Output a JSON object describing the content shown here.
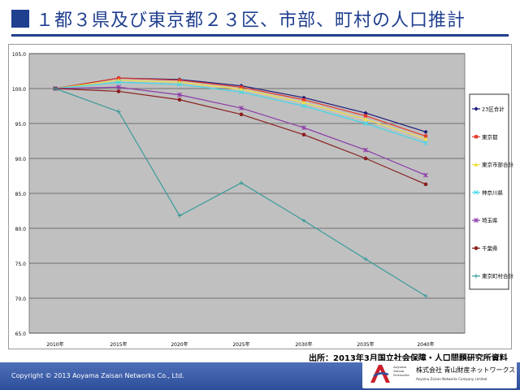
{
  "header": {
    "title": "１都３県及び東京都２３区、市部、町村の人口推計"
  },
  "source": "出所：2013年3月国立社会保障・人口問題研究所資料",
  "footer": {
    "copyright": "Copyright © 2013 Aoyama Zaisan Networks Co., Ltd.",
    "company_name": "株式会社 青山財産ネットワークス",
    "company_en": "Aoyama Zaisan Networks Company Limited",
    "logo_caption": [
      "Aoyama",
      "Zaisan",
      "Networks"
    ]
  },
  "chart_data": {
    "type": "line",
    "title": "",
    "xlabel": "",
    "ylabel": "",
    "categories": [
      "2010年",
      "2015年",
      "2020年",
      "2025年",
      "2030年",
      "2035年",
      "2040年"
    ],
    "ylim": [
      65.0,
      105.0
    ],
    "yticks": [
      "65.0",
      "70.0",
      "75.0",
      "80.0",
      "85.0",
      "90.0",
      "95.0",
      "100.0",
      "105.0"
    ],
    "grid": true,
    "legend_position": "right",
    "series": [
      {
        "name": "23区合計",
        "color": "#1a1a7a",
        "marker": "diamond",
        "values": [
          100.0,
          101.5,
          101.3,
          100.4,
          98.7,
          96.5,
          93.8
        ]
      },
      {
        "name": "東京都",
        "color": "#e23a2a",
        "marker": "square",
        "values": [
          100.0,
          101.5,
          101.2,
          100.2,
          98.4,
          96.1,
          93.2
        ]
      },
      {
        "name": "東京市部合計",
        "color": "#f0e040",
        "marker": "triangle",
        "values": [
          100.0,
          101.2,
          100.9,
          99.9,
          98.0,
          95.6,
          92.8
        ]
      },
      {
        "name": "神奈川県",
        "color": "#40d8e8",
        "marker": "x",
        "values": [
          100.0,
          100.9,
          100.6,
          99.5,
          97.5,
          95.0,
          92.2
        ]
      },
      {
        "name": "埼玉県",
        "color": "#8c3ca8",
        "marker": "star",
        "values": [
          100.0,
          100.2,
          99.1,
          97.2,
          94.4,
          91.2,
          87.6
        ]
      },
      {
        "name": "千葉県",
        "color": "#8a1f1f",
        "marker": "circle",
        "values": [
          100.0,
          99.6,
          98.4,
          96.3,
          93.4,
          90.0,
          86.3
        ]
      },
      {
        "name": "東京町村合計",
        "color": "#3a9a9a",
        "marker": "plus",
        "values": [
          100.0,
          96.7,
          81.8,
          86.5,
          81.1,
          75.6,
          70.3
        ]
      }
    ]
  }
}
